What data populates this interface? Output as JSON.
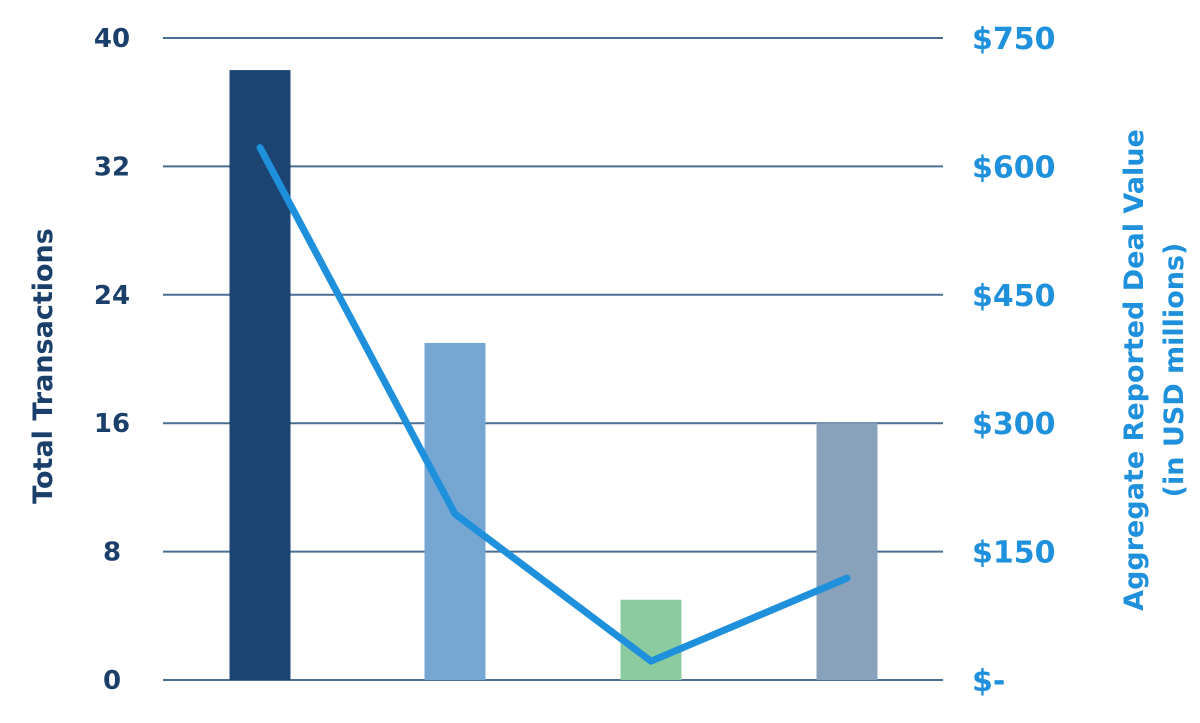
{
  "chart_data": {
    "type": "bar+line",
    "categories": [
      "",
      "",
      "",
      ""
    ],
    "series": [
      {
        "kind": "bar",
        "axis": "left",
        "values": [
          38,
          21,
          5,
          16
        ],
        "colors": [
          "#1b4472",
          "#76a7d2",
          "#8bcb9f",
          "#87a2ba"
        ]
      },
      {
        "kind": "line",
        "axis": "right",
        "values": [
          622,
          194,
          22,
          119
        ],
        "color": "#1e90dc"
      }
    ],
    "ylabel": "Total Transactions",
    "y2label": [
      "Aggregate Reported Deal Value",
      "(in USD millions)"
    ],
    "ylim": [
      0,
      40
    ],
    "y2lim": [
      0,
      750
    ],
    "yticks": [
      "0",
      "8",
      "16",
      "24",
      "32",
      "40"
    ],
    "y2ticks": [
      "$-",
      "$150",
      "$300",
      "$450",
      "$600",
      "$750"
    ],
    "grid": true,
    "colors": {
      "left_axis": "#1b3f6b",
      "right_axis": "#1e90dc",
      "grid": "#4a6d92"
    }
  }
}
